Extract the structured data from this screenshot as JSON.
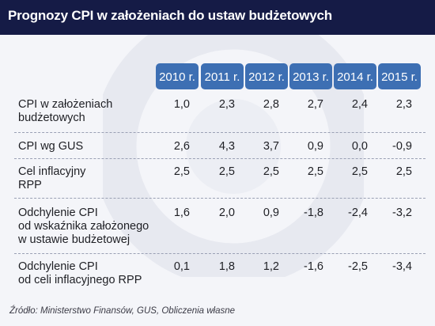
{
  "title": "Prognozy CPI w założeniach do ustaw budżetowych",
  "years": [
    "2010 r.",
    "2011 r.",
    "2012 r.",
    "2013 r.",
    "2014 r.",
    "2015 r."
  ],
  "rows": [
    {
      "label": [
        "CPI w założeniach",
        "budżetowych"
      ],
      "values": [
        "1,0",
        "2,3",
        "2,8",
        "2,7",
        "2,4",
        "2,3"
      ]
    },
    {
      "label": [
        "CPI wg GUS"
      ],
      "values": [
        "2,6",
        "4,3",
        "3,7",
        "0,9",
        "0,0",
        "-0,9"
      ]
    },
    {
      "label": [
        "Cel inflacyjny",
        "RPP"
      ],
      "values": [
        "2,5",
        "2,5",
        "2,5",
        "2,5",
        "2,5",
        "2,5"
      ]
    },
    {
      "label": [
        "Odchylenie CPI",
        "od wskaźnika założonego",
        "w ustawie budżetowej"
      ],
      "values": [
        "1,6",
        "2,0",
        "0,9",
        "-1,8",
        "-2,4",
        "-3,2"
      ]
    },
    {
      "label": [
        "Odchylenie CPI",
        "od celi inflacyjnego RPP"
      ],
      "values": [
        "0,1",
        "1,8",
        "1,2",
        "-1,6",
        "-2,5",
        "-3,4"
      ]
    }
  ],
  "source": "Źródło: Ministerstwo Finansów, GUS, Obliczenia własne",
  "colors": {
    "header_bg": "#151b46",
    "year_badge": "#3d6fb3",
    "background": "#f4f5f9"
  }
}
